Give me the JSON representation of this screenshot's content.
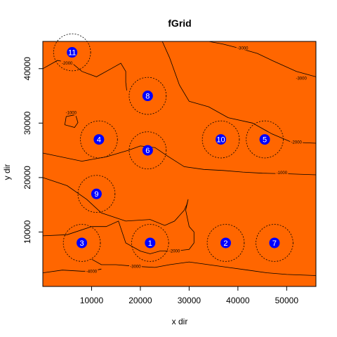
{
  "chart_data": {
    "type": "contour",
    "title": "fGrid",
    "xlabel": "x dir",
    "ylabel": "y dir",
    "xlim": [
      0,
      56000
    ],
    "ylim": [
      0,
      45000
    ],
    "xticks": [
      10000,
      20000,
      30000,
      40000,
      50000
    ],
    "yticks": [
      10000,
      20000,
      30000,
      40000
    ],
    "xtick_labels": [
      "10000",
      "20000",
      "30000",
      "40000",
      "50000"
    ],
    "ytick_labels": [
      "10000",
      "20000",
      "30000",
      "40000"
    ],
    "fill_color": "#ff6600",
    "well_color": "#0000ff",
    "well_radius": 3800,
    "wells": [
      {
        "id": "1",
        "x": 22000,
        "y": 8000
      },
      {
        "id": "2",
        "x": 37500,
        "y": 8000
      },
      {
        "id": "3",
        "x": 8000,
        "y": 8000
      },
      {
        "id": "4",
        "x": 11500,
        "y": 27000
      },
      {
        "id": "5",
        "x": 45500,
        "y": 27000
      },
      {
        "id": "6",
        "x": 21500,
        "y": 25000
      },
      {
        "id": "7",
        "x": 47500,
        "y": 8000
      },
      {
        "id": "8",
        "x": 21500,
        "y": 35000
      },
      {
        "id": "9",
        "x": 11000,
        "y": 17000
      },
      {
        "id": "10",
        "x": 36500,
        "y": 27000
      },
      {
        "id": "11",
        "x": 6000,
        "y": 43000
      }
    ],
    "contours": [
      {
        "level": "-1000",
        "label_at": [
          5800,
          31900
        ],
        "points": [
          [
            6500,
            31500
          ],
          [
            4800,
            31200
          ],
          [
            4500,
            29700
          ],
          [
            6500,
            29200
          ],
          [
            7200,
            30100
          ],
          [
            6800,
            31300
          ]
        ]
      },
      {
        "level": "-1000",
        "label_at": [
          49000,
          20900
        ],
        "points": [
          [
            0,
            24500
          ],
          [
            8000,
            23000
          ],
          [
            13000,
            23800
          ],
          [
            17500,
            25000
          ],
          [
            20000,
            25800
          ],
          [
            23000,
            25500
          ],
          [
            25500,
            24000
          ],
          [
            29000,
            22000
          ],
          [
            33000,
            21500
          ],
          [
            37000,
            21300
          ],
          [
            41000,
            21000
          ],
          [
            45000,
            20800
          ],
          [
            50000,
            20700
          ],
          [
            56000,
            20500
          ]
        ]
      },
      {
        "level": "-2000",
        "label_at": [
          27000,
          6500
        ],
        "points": [
          [
            0,
            20000
          ],
          [
            5000,
            18500
          ],
          [
            9000,
            16000
          ],
          [
            12000,
            13500
          ],
          [
            17000,
            12000
          ],
          [
            22000,
            12300
          ],
          [
            25000,
            11200
          ],
          [
            27000,
            12000
          ],
          [
            29000,
            14000
          ],
          [
            29500,
            15000
          ],
          [
            29800,
            16000
          ],
          [
            29300,
            14000
          ],
          [
            30000,
            11000
          ],
          [
            31000,
            10000
          ],
          [
            31000,
            8000
          ],
          [
            30000,
            6800
          ],
          [
            27000,
            6500
          ],
          [
            24000,
            6500
          ],
          [
            22000,
            6000
          ],
          [
            20000,
            6500
          ],
          [
            17000,
            8000
          ],
          [
            15500,
            12000
          ],
          [
            13000,
            11000
          ],
          [
            10000,
            11000
          ],
          [
            5000,
            9500
          ],
          [
            0,
            9300
          ]
        ]
      },
      {
        "level": "-2000",
        "label_at": [
          52000,
          26500
        ],
        "points": [
          [
            30000,
            34000
          ],
          [
            34000,
            33000
          ],
          [
            38000,
            31000
          ],
          [
            43000,
            30000
          ],
          [
            47000,
            28000
          ],
          [
            51000,
            26500
          ],
          [
            56000,
            26300
          ]
        ]
      },
      {
        "level": "-2000",
        "label_at": [
          5000,
          41000
        ],
        "points": [
          [
            0,
            40000
          ],
          [
            3000,
            41500
          ],
          [
            6000,
            41000
          ],
          [
            8000,
            39500
          ],
          [
            11000,
            38500
          ],
          [
            14000,
            40000
          ],
          [
            16000,
            41000
          ],
          [
            17000,
            39500
          ],
          [
            17000,
            37500
          ],
          [
            17200,
            36000
          ]
        ]
      },
      {
        "level": "-3000",
        "label_at": [
          19000,
          3700
        ],
        "points": [
          [
            10000,
            5000
          ],
          [
            12000,
            4000
          ],
          [
            15000,
            4000
          ],
          [
            19000,
            3700
          ],
          [
            23000,
            3500
          ],
          [
            26000,
            4000
          ],
          [
            30000,
            4500
          ],
          [
            34000,
            4000
          ],
          [
            38000,
            3500
          ],
          [
            42000,
            3000
          ],
          [
            46000,
            2500
          ],
          [
            50000,
            2200
          ],
          [
            56000,
            2000
          ]
        ]
      },
      {
        "level": "-3000",
        "label_at": [
          41000,
          43800
        ],
        "points": [
          [
            34000,
            45000
          ],
          [
            37000,
            44500
          ],
          [
            40000,
            43800
          ],
          [
            44000,
            42800
          ],
          [
            47000,
            41500
          ],
          [
            52000,
            39500
          ],
          [
            56000,
            38500
          ]
        ]
      },
      {
        "level": "-3000",
        "label_at": [
          53000,
          38200
        ],
        "points": [
          [
            24500,
            45000
          ],
          [
            26000,
            42000
          ],
          [
            28000,
            37000
          ],
          [
            30000,
            34000
          ]
        ]
      },
      {
        "level": "-4000",
        "label_at": [
          10000,
          2800
        ],
        "points": [
          [
            0,
            2500
          ],
          [
            4000,
            3000
          ],
          [
            8000,
            2800
          ],
          [
            10000,
            2800
          ],
          [
            12000,
            3200
          ]
        ]
      }
    ]
  }
}
